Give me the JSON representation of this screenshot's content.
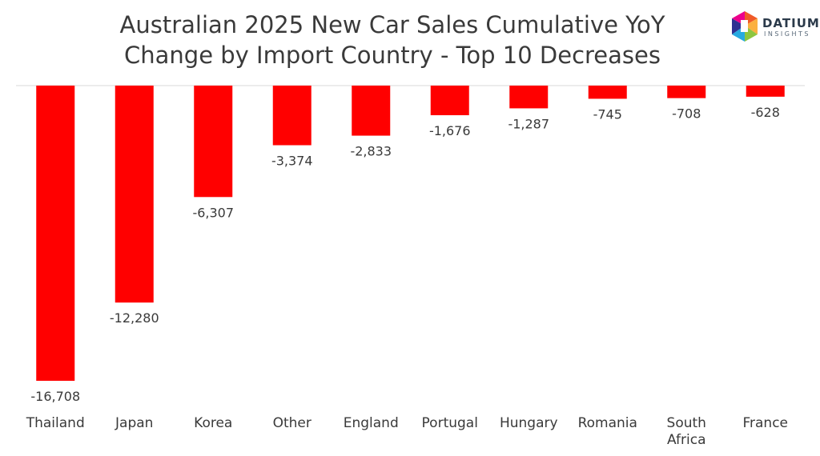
{
  "header": {
    "title_line1": "Australian 2025 New Car Sales Cumulative YoY",
    "title_line2": "Change by Import Country - Top 10 Decreases"
  },
  "logo": {
    "brand": "DATIUM",
    "sub": "INSIGHTS",
    "colors": [
      "#f05a28",
      "#fbb040",
      "#8dc63f",
      "#27aae1",
      "#2e3192",
      "#ec008c"
    ]
  },
  "chart_data": {
    "type": "bar",
    "categories": [
      "Thailand",
      "Japan",
      "Korea",
      "Other",
      "England",
      "Portugal",
      "Hungary",
      "Romania",
      "South Africa",
      "France"
    ],
    "values": [
      -16708,
      -12280,
      -6307,
      -3374,
      -2833,
      -1676,
      -1287,
      -745,
      -708,
      -628
    ],
    "data_labels": [
      "-16,708",
      "-12,280",
      "-6,307",
      "-3,374",
      "-2,833",
      "-1,676",
      "-1,287",
      "-745",
      "-708",
      "-628"
    ],
    "bar_color": "#ff0000",
    "title": "Australian 2025 New Car Sales Cumulative YoY Change by Import Country - Top 10 Decreases",
    "xlabel": "",
    "ylabel": "",
    "ylim": [
      -16708,
      0
    ],
    "grid": false,
    "legend": "none"
  }
}
